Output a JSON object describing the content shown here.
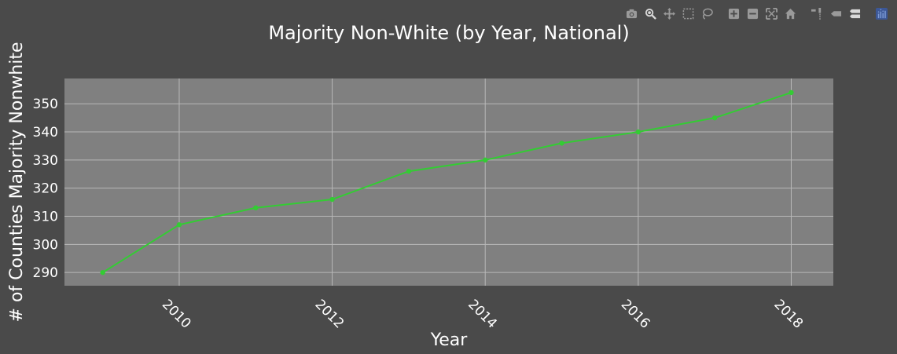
{
  "colors": {
    "page_bg": "#4a4a4a",
    "plot_bg": "#808080",
    "grid": "#b8b8b8",
    "line": "#33cc33",
    "text": "#ffffff",
    "modebar_icon": "#9a9a9a",
    "modebar_active": "#d9d9d9",
    "logo": "#7d9bd6"
  },
  "modebar": {
    "buttons": [
      {
        "icon": "camera-icon",
        "name": "download-plot-button"
      },
      {
        "icon": "zoom-icon",
        "name": "zoom-button"
      },
      {
        "icon": "pan-icon",
        "name": "pan-button"
      },
      {
        "icon": "box-select-icon",
        "name": "box-select-button"
      },
      {
        "icon": "lasso-select-icon",
        "name": "lasso-select-button"
      },
      {
        "icon": "zoom-in-icon",
        "name": "zoom-in-button"
      },
      {
        "icon": "zoom-out-icon",
        "name": "zoom-out-button"
      },
      {
        "icon": "autoscale-icon",
        "name": "autoscale-button"
      },
      {
        "icon": "home-icon",
        "name": "reset-axes-button"
      },
      {
        "icon": "spike-lines-icon",
        "name": "toggle-spike-lines-button"
      },
      {
        "icon": "hover-closest-icon",
        "name": "hover-closest-button"
      },
      {
        "icon": "hover-compare-icon",
        "name": "hover-compare-button"
      },
      {
        "icon": "plotly-logo-icon",
        "name": "plotly-logo-link"
      }
    ]
  },
  "chart_data": {
    "type": "line",
    "title": "Majority Non-White (by Year, National)",
    "xlabel": "Year",
    "ylabel": "# of Counties Majority Nonwhite",
    "x": [
      2009,
      2010,
      2011,
      2012,
      2013,
      2014,
      2015,
      2016,
      2017,
      2018
    ],
    "y": [
      290,
      307,
      313,
      316,
      326,
      330,
      336,
      340,
      345,
      354
    ],
    "xlim": [
      2008.5,
      2018.55
    ],
    "ylim": [
      285.3,
      359
    ],
    "xticks": [
      2010,
      2012,
      2014,
      2016,
      2018
    ],
    "yticks": [
      290,
      300,
      310,
      320,
      330,
      340,
      350
    ],
    "xtick_labels": [
      "2010",
      "2012",
      "2014",
      "2016",
      "2018"
    ],
    "ytick_labels": [
      "290",
      "300",
      "310",
      "320",
      "330",
      "340",
      "350"
    ],
    "xtick_rotation_deg": 45,
    "grid": true,
    "markers": true
  }
}
